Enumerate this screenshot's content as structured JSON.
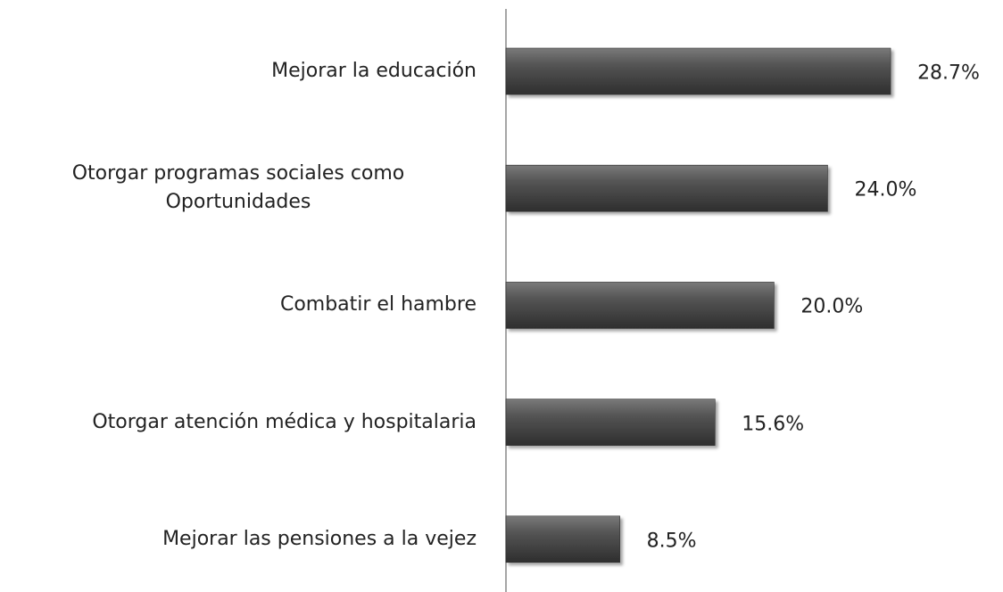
{
  "chart_data": {
    "type": "bar",
    "orientation": "horizontal",
    "categories": [
      "Mejorar la educación",
      "Otorgar programas sociales como Oportunidades",
      "Combatir el hambre",
      "Otorgar atención médica y hospitalaria",
      "Mejorar las pensiones a la vejez"
    ],
    "values": [
      28.7,
      24.0,
      20.0,
      15.6,
      8.5
    ],
    "value_labels": [
      "28.7%",
      "24.0%",
      "20.0%",
      "15.6%",
      "8.5%"
    ],
    "color": "#4a4a4a"
  }
}
